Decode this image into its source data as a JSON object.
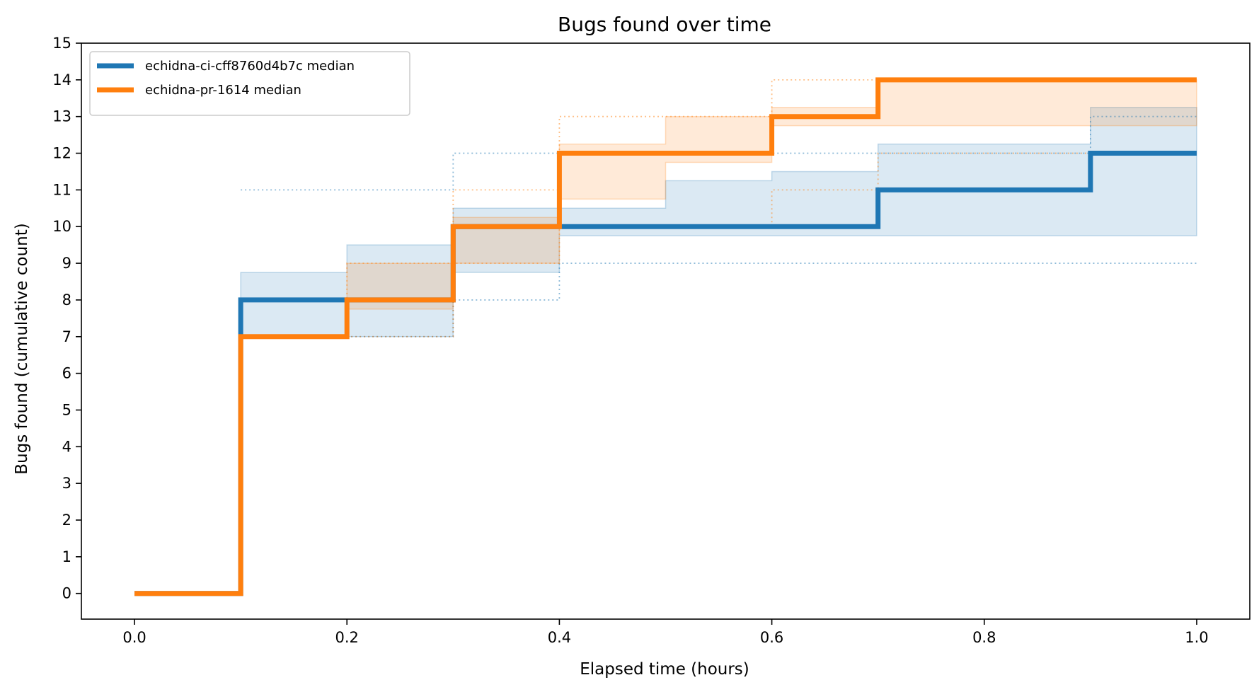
{
  "chart_data": {
    "type": "line",
    "step": "post",
    "title": "Bugs found over time",
    "xlabel": "Elapsed time (hours)",
    "ylabel": "Bugs found (cumulative count)",
    "xlim": [
      -0.05,
      1.05
    ],
    "ylim": [
      -0.7,
      15
    ],
    "xticks": [
      0.0,
      0.2,
      0.4,
      0.6,
      0.8,
      1.0
    ],
    "xtick_labels": [
      "0.0",
      "0.2",
      "0.4",
      "0.6",
      "0.8",
      "1.0"
    ],
    "yticks": [
      0,
      1,
      2,
      3,
      4,
      5,
      6,
      7,
      8,
      9,
      10,
      11,
      12,
      13,
      14,
      15
    ],
    "ytick_labels": [
      "0",
      "1",
      "2",
      "3",
      "4",
      "5",
      "6",
      "7",
      "8",
      "9",
      "10",
      "11",
      "12",
      "13",
      "14",
      "15"
    ],
    "grid": false,
    "legend_position": "top-left",
    "x": [
      0.0,
      0.1,
      0.2,
      0.3,
      0.4,
      0.5,
      0.6,
      0.7,
      0.8,
      0.9,
      1.0
    ],
    "series": [
      {
        "name": "echidna-ci-cff8760d4b7c median",
        "color": "#1f77b4",
        "median": [
          0,
          8,
          8,
          10,
          10,
          10,
          10,
          11,
          11,
          12,
          12
        ],
        "band_low": [
          0,
          7,
          7,
          8.75,
          9.75,
          9.75,
          9.75,
          9.75,
          9.75,
          9.75,
          9.75
        ],
        "band_high": [
          0,
          8.75,
          9.5,
          10.5,
          10.5,
          11.25,
          11.5,
          12.25,
          12.25,
          13.25,
          13.25
        ],
        "min": [
          0,
          7,
          7,
          8,
          9,
          9,
          9,
          9,
          9,
          9,
          9
        ],
        "max": [
          0,
          11,
          11,
          12,
          12,
          12,
          12,
          12,
          12,
          13,
          13
        ]
      },
      {
        "name": "echidna-pr-1614 median",
        "color": "#ff7f0e",
        "median": [
          0,
          7,
          8,
          10,
          12,
          12,
          13,
          14,
          14,
          14,
          14
        ],
        "band_low": [
          0,
          7,
          7.75,
          9,
          10.75,
          11.75,
          12.75,
          12.75,
          12.75,
          12.75,
          12.75
        ],
        "band_high": [
          0,
          7,
          9,
          10.25,
          12.25,
          13,
          13.25,
          14,
          14,
          14,
          14
        ],
        "min": [
          0,
          7,
          7,
          9,
          10,
          10,
          11,
          12,
          12,
          12,
          12
        ],
        "max": [
          0,
          7,
          9,
          11,
          13,
          13,
          14,
          14,
          14,
          14,
          14
        ]
      }
    ]
  }
}
